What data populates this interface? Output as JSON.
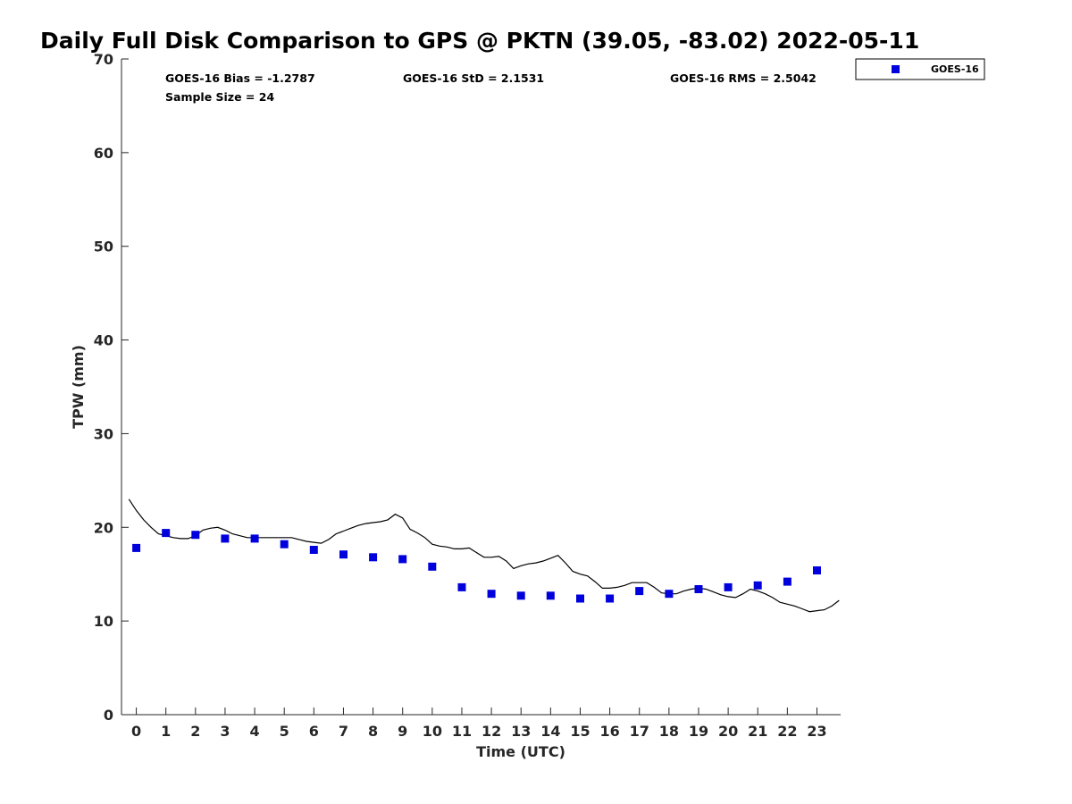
{
  "chart_data": {
    "type": "scatter",
    "title": "Daily Full Disk Comparison to GPS @ PKTN (39.05, -83.02) 2022-05-11",
    "xlabel": "Time (UTC)",
    "ylabel": "TPW (mm)",
    "xlim": [
      -0.5,
      23.8
    ],
    "ylim": [
      0,
      70
    ],
    "x_ticks": [
      0,
      1,
      2,
      3,
      4,
      5,
      6,
      7,
      8,
      9,
      10,
      11,
      12,
      13,
      14,
      15,
      16,
      17,
      18,
      19,
      20,
      21,
      22,
      23
    ],
    "y_ticks": [
      0,
      10,
      20,
      30,
      40,
      50,
      60,
      70
    ],
    "grid": false,
    "legend_position": "top-right",
    "stats": {
      "bias": "GOES-16 Bias = -1.2787",
      "std": "GOES-16 StD = 2.1531",
      "rms": "GOES-16 RMS = 2.5042",
      "sample": "Sample Size = 24"
    },
    "series": [
      {
        "name": "GOES-16",
        "kind": "scatter",
        "marker": "square",
        "color": "#0000dd",
        "x": [
          0,
          1,
          2,
          3,
          4,
          5,
          6,
          7,
          8,
          9,
          10,
          11,
          12,
          13,
          14,
          15,
          16,
          17,
          18,
          19,
          20,
          21,
          22,
          23
        ],
        "y": [
          17.8,
          19.4,
          19.2,
          18.8,
          18.8,
          18.2,
          17.6,
          17.1,
          16.8,
          16.6,
          15.8,
          13.6,
          12.9,
          12.7,
          12.7,
          12.4,
          12.4,
          13.2,
          12.9,
          13.4,
          13.6,
          13.8,
          14.2,
          15.4
        ]
      },
      {
        "kind": "line",
        "color": "#000000",
        "x": [
          -0.25,
          0,
          0.25,
          0.5,
          0.75,
          1,
          1.25,
          1.5,
          1.75,
          2,
          2.25,
          2.5,
          2.75,
          3,
          3.25,
          3.5,
          3.75,
          4,
          4.25,
          4.5,
          4.75,
          5,
          5.25,
          5.5,
          5.75,
          6,
          6.25,
          6.5,
          6.75,
          7,
          7.25,
          7.5,
          7.75,
          8,
          8.25,
          8.5,
          8.75,
          9,
          9.25,
          9.5,
          9.75,
          10,
          10.25,
          10.5,
          10.75,
          11,
          11.25,
          11.5,
          11.75,
          12,
          12.25,
          12.5,
          12.75,
          13,
          13.25,
          13.5,
          13.75,
          14,
          14.25,
          14.5,
          14.75,
          15,
          15.25,
          15.5,
          15.75,
          16,
          16.25,
          16.5,
          16.75,
          17,
          17.25,
          17.5,
          17.75,
          18,
          18.25,
          18.5,
          18.75,
          19,
          19.25,
          19.5,
          19.75,
          20,
          20.25,
          20.5,
          20.75,
          21,
          21.25,
          21.5,
          21.75,
          22,
          22.25,
          22.5,
          22.75,
          23,
          23.25,
          23.5,
          23.75
        ],
        "y": [
          23.0,
          21.8,
          20.8,
          20.0,
          19.3,
          19.1,
          18.9,
          18.8,
          18.8,
          19.1,
          19.7,
          19.9,
          20.0,
          19.7,
          19.3,
          19.1,
          18.9,
          18.9,
          18.9,
          18.9,
          18.9,
          18.9,
          18.9,
          18.7,
          18.5,
          18.4,
          18.3,
          18.7,
          19.3,
          19.6,
          19.9,
          20.2,
          20.4,
          20.5,
          20.6,
          20.8,
          21.4,
          21.0,
          19.8,
          19.4,
          18.9,
          18.2,
          18.0,
          17.9,
          17.7,
          17.7,
          17.8,
          17.3,
          16.8,
          16.8,
          16.9,
          16.4,
          15.6,
          15.9,
          16.1,
          16.2,
          16.4,
          16.7,
          17.0,
          16.2,
          15.3,
          15.0,
          14.8,
          14.2,
          13.5,
          13.5,
          13.6,
          13.8,
          14.1,
          14.1,
          14.1,
          13.6,
          13.0,
          12.9,
          12.9,
          13.2,
          13.4,
          13.5,
          13.4,
          13.1,
          12.8,
          12.6,
          12.5,
          12.9,
          13.4,
          13.2,
          12.9,
          12.5,
          12.0,
          11.8,
          11.6,
          11.3,
          11.0,
          11.1,
          11.2,
          11.6,
          12.2
        ]
      }
    ]
  }
}
